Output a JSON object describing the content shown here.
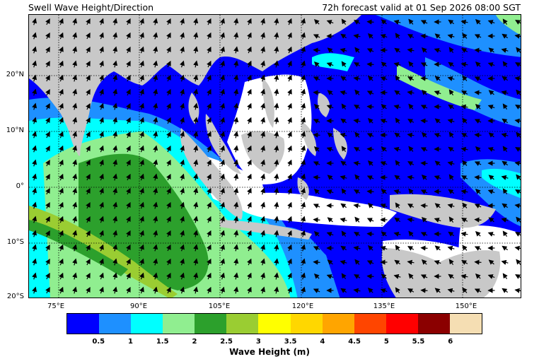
{
  "header": {
    "title": "Swell Wave Height/Direction",
    "forecast": "72h forecast valid at 01 Sep 2026 08:00 SGT"
  },
  "map": {
    "lat_labels": [
      "20°N",
      "10°N",
      "0°",
      "10°S",
      "20°S"
    ],
    "lon_labels": [
      "75°E",
      "90°E",
      "105°E",
      "120°E",
      "135°E",
      "150°E"
    ]
  },
  "colorbar": {
    "title": "Wave Height (m)",
    "ticks": [
      "0.5",
      "1",
      "1.5",
      "2",
      "2.5",
      "3",
      "3.5",
      "4",
      "4.5",
      "5",
      "5.5",
      "6"
    ],
    "colors": [
      "#0000ff",
      "#1e90ff",
      "#00ffff",
      "#90ee90",
      "#2ca02c",
      "#9acd32",
      "#ffff00",
      "#ffd700",
      "#ffa500",
      "#ff4500",
      "#ff0000",
      "#8b0000",
      "#f5deb3"
    ]
  },
  "colors": {
    "land": "#c8c8c8",
    "ocean_blue": "#0000ff",
    "ocean_mid": "#1e90ff",
    "ocean_cyan": "#00ffff",
    "light_green": "#90ee90",
    "green": "#2ca02c",
    "yellow_green": "#9acd32"
  }
}
